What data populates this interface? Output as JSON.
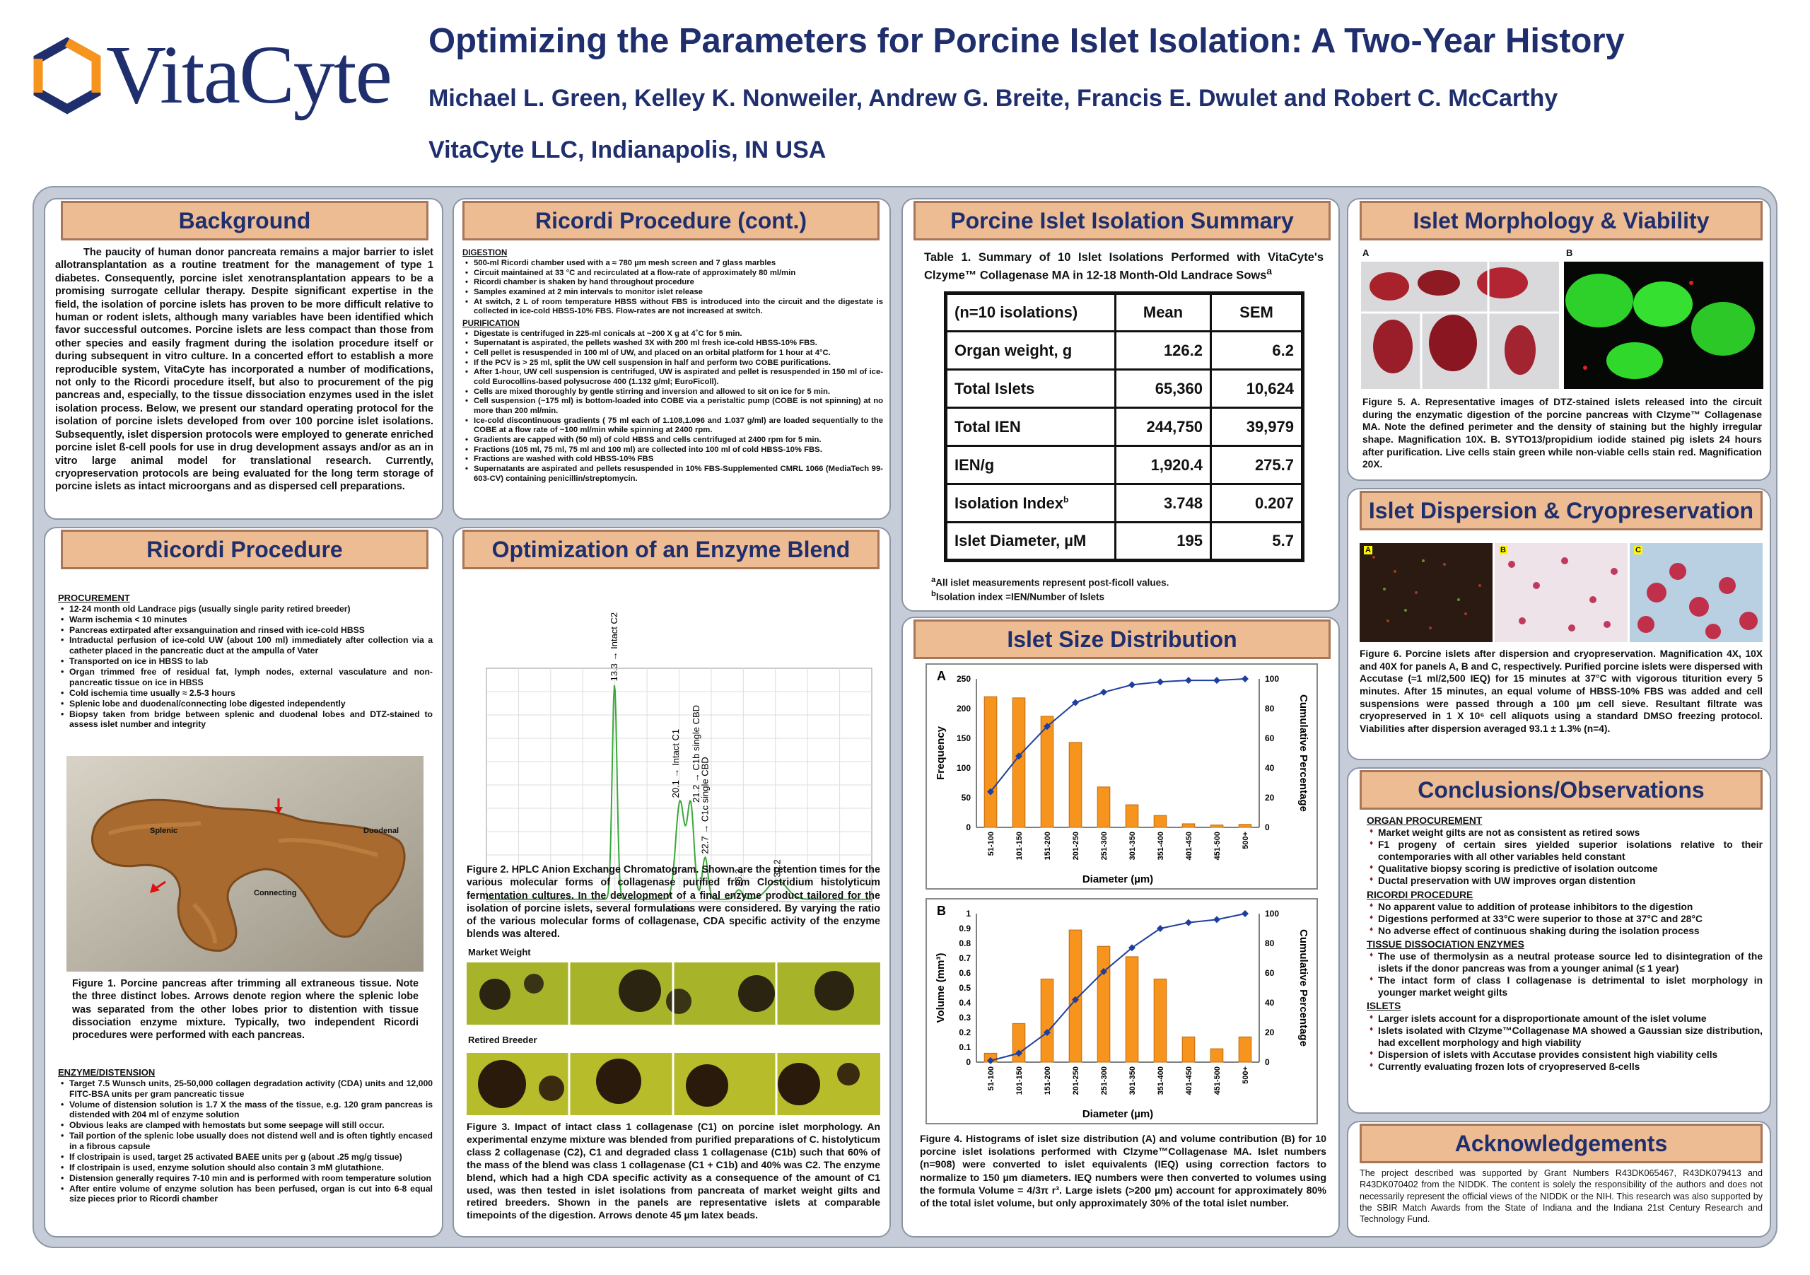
{
  "header": {
    "logo_text": "VitaCyte",
    "title": "Optimizing the Parameters for Porcine Islet Isolation: A Two-Year History",
    "authors": "Michael L. Green, Kelley K. Nonweiler, Andrew G. Breite, Francis E. Dwulet and Robert C. McCarthy",
    "affiliation": "VitaCyte LLC, Indianapolis, IN USA"
  },
  "colors": {
    "navy": "#1f2f6e",
    "header_fill": "#eebc92",
    "bar_orange": "#f7941d",
    "line_blue": "#1f3f9f"
  },
  "background": {
    "heading": "Background",
    "text": "The paucity of human donor pancreata remains a major barrier to islet allotransplantation as a routine treatment for the management of type 1 diabetes. Consequently, porcine islet xenotransplantation appears to be a promising surrogate cellular therapy. Despite significant expertise in the field, the isolation of porcine islets has proven to be more difficult relative to human or rodent islets, although many variables have been identified which favor successful outcomes. Porcine islets are less compact than those from other species and easily fragment during the isolation procedure itself or during subsequent in vitro culture. In a concerted effort to establish a more reproducible system, VitaCyte has incorporated a number of modifications, not only to the Ricordi procedure itself, but also to procurement of the pig pancreas and, especially, to the tissue dissociation enzymes used in the islet isolation process. Below, we present our standard operating protocol for the isolation of porcine islets developed from over 100 porcine islet isolations. Subsequently, islet dispersion protocols were employed to generate enriched porcine islet ß-cell pools for use in drug development assays and/or as an in vitro large animal model for translational research. Currently, cryopreservation protocols are being evaluated for the long term storage of porcine islets as intact microorgans and as dispersed cell preparations."
  },
  "ricordi": {
    "heading": "Ricordi Procedure",
    "procurement_title": "PROCUREMENT",
    "procurement": [
      "12-24 month old Landrace pigs (usually single parity retired breeder)",
      "Warm ischemia < 10 minutes",
      "Pancreas extirpated after exsanguination and rinsed with ice-cold HBSS",
      "Intraductal perfusion of ice-cold UW (about 100 ml) immediately after collection via a catheter placed in the pancreatic duct at the ampulla of Vater",
      "Transported on ice in HBSS to lab",
      "Organ trimmed free of residual fat, lymph nodes, external vasculature and non-pancreatic tissue on ice in HBSS",
      "Cold ischemia time usually ≈ 2.5-3 hours",
      "Splenic lobe and duodenal/connecting lobe digested independently",
      "Biopsy taken from bridge between splenic and duodenal lobes and DTZ-stained to assess islet number and integrity"
    ],
    "photo_labels": {
      "splenic": "Splenic",
      "duodenal": "Duodenal",
      "connecting": "Connecting"
    },
    "figure1": "Figure 1. Porcine pancreas after trimming all extraneous tissue. Note the three distinct lobes. Arrows denote region where the splenic lobe was separated from the other lobes prior to distention with tissue dissociation enzyme mixture. Typically, two independent Ricordi procedures were performed with each pancreas.",
    "enzyme_title": "ENZYME/DISTENSION",
    "enzyme": [
      "Target 7.5 Wunsch units, 25-50,000 collagen degradation activity (CDA) units and 12,000 FITC-BSA units per gram pancreatic tissue",
      "Volume of distension solution is 1.7 X the mass of the tissue, e.g. 120 gram pancreas is distended with 204 ml of enzyme solution",
      "Obvious leaks are clamped with hemostats but some seepage will still occur.",
      "Tail portion of the splenic lobe usually does not distend well and is often tightly encased in a fibrous capsule",
      "If clostripain is used, target 25 activated BAEE units per g (about .25 mg/g tissue)",
      "If clostripain is used, enzyme solution should also contain 3 mM glutathione.",
      "Distension generally requires 7-10 min and is performed with room temperature solution",
      "After entire volume of enzyme solution has been perfused, organ is cut into 6-8 equal size pieces prior to Ricordi chamber"
    ]
  },
  "ricordi_cont": {
    "heading": "Ricordi Procedure (cont.)",
    "digestion_title": "DIGESTION",
    "digestion": [
      "500-ml Ricordi chamber used with a ≈ 780 µm mesh screen and 7 glass marbles",
      "Circuit maintained at 33 °C and recirculated at a flow-rate of approximately 80 ml/min",
      "Ricordi chamber is shaken by hand throughout procedure",
      "Samples examined at 2 min intervals to monitor islet release",
      "At switch, 2 L of room temperature HBSS without FBS is introduced into the circuit and the digestate is collected in ice-cold HBSS-10% FBS. Flow-rates are not increased at switch."
    ],
    "purification_title": "PURIFICATION",
    "purification": [
      "Digestate is centrifuged in 225-ml conicals at ~200 X g at 4˚C for 5 min.",
      "Supernatant is aspirated, the pellets washed 3X with 200 ml fresh ice-cold HBSS-10% FBS.",
      "Cell pellet is resuspended in 100 ml of UW, and placed on an orbital platform for 1 hour at 4°C.",
      "If the PCV is > 25 ml, split the UW cell suspension in half and perform two COBE purifications.",
      "After 1-hour, UW cell suspension is centrifuged, UW is aspirated and pellet is resuspended in 150 ml of ice-cold Eurocollins-based polysucrose 400 (1.132 g/ml; EuroFicoll).",
      "Cells are mixed thoroughly by gentle stirring and inversion and allowed to sit on ice for 5 min.",
      "Cell suspension (~175 ml) is bottom-loaded into COBE via a peristaltic pump (COBE is not spinning) at no more than 200 ml/min.",
      "Ice-cold discontinuous gradients ( 75 ml each of 1.108,1.096 and 1.037 g/ml) are loaded sequentially to the COBE at a flow rate of ~100 ml/min while spinning at 2400 rpm.",
      "Gradients are capped with (50 ml) of cold HBSS and cells centrifuged at 2400 rpm for 5 min.",
      "Fractions (105 ml, 75 ml, 75 ml and 100 ml) are collected into 100 ml of cold HBSS-10% FBS.",
      "Fractions are washed with cold HBSS-10% FBS",
      "Supernatants are aspirated and pellets resuspended in 10% FBS-Supplemented CMRL 1066 (MediaTech 99-603-CV) containing penicillin/streptomycin."
    ]
  },
  "enzyme_blend": {
    "heading": "Optimization of an Enzyme Blend",
    "peaks": [
      {
        "rt": "13.3",
        "label": "Intact C2"
      },
      {
        "rt": "20.1",
        "label": "Intact C1"
      },
      {
        "rt": "21.2",
        "label": "C1b single CBD"
      },
      {
        "rt": "22.7",
        "label": "C1c single CBD"
      },
      {
        "rt": "26.2",
        "label": ""
      },
      {
        "rt": "30.2",
        "label": ""
      }
    ],
    "x_axis_label": "Minutes",
    "figure2": "Figure 2. HPLC Anion Exchange Chromatogram. Shown are the retention times for the various molecular forms of collagenase purified from Clostridium histolyticum fermentation cultures. In the development of a final enzyme product tailored for the isolation of porcine islets, several formulations were considered. By varying the ratio of the various molecular forms of collagenase, CDA specific activity of the enzyme blends was altered.",
    "market_label": "Market Weight",
    "retired_label": "Retired Breeder",
    "figure3": "Figure 3. Impact of intact class 1 collagenase (C1) on porcine islet morphology. An experimental enzyme mixture was blended from purified preparations of C. histolyticum class 2 collagenase (C2), C1 and degraded class 1 collagenase (C1b) such that 60% of the mass of the blend was class 1 collagenase (C1 + C1b) and 40% was C2. The enzyme blend, which had a high CDA specific activity as a consequence of the amount of C1 used, was then tested in islet isolations from pancreata of market weight gilts and retired breeders. Shown in the panels are representative islets at comparable timepoints of the digestion. Arrows denote 45 µm latex beads."
  },
  "summary": {
    "heading": "Porcine Islet Isolation Summary",
    "table_caption": "Table 1. Summary of 10 Islet Isolations Performed with VitaCyte's Clzyme™ Collagenase MA in 12-18 Month-Old Landrace Sows",
    "columns": [
      "(n=10 isolations)",
      "Mean",
      "SEM"
    ],
    "rows": [
      [
        "Organ weight, g",
        "126.2",
        "6.2"
      ],
      [
        "Total Islets",
        "65,360",
        "10,624"
      ],
      [
        "Total IEN",
        "244,750",
        "39,979"
      ],
      [
        "IEN/g",
        "1,920.4",
        "275.7"
      ],
      [
        "Isolation Index",
        "3.748",
        "0.207"
      ],
      [
        "Islet Diameter, µM",
        "195",
        "5.7"
      ]
    ],
    "footnote_a": "All islet measurements represent post-ficoll values.",
    "footnote_b": "Isolation index =IEN/Number of Islets"
  },
  "size_dist": {
    "heading": "Islet Size Distribution",
    "figure4": "Figure 4. Histograms of islet size distribution (A) and volume contribution (B) for 10 porcine islet isolations performed with Clzyme™Collagenase MA. Islet numbers (n=908) were converted to islet equivalents (IEQ) using correction factors to normalize to 150 µm diameters. IEQ numbers were then converted to volumes using the formula Volume = 4/3π r³. Large islets (>200 µm) account for approximately 80% of the total islet volume, but only approximately 30% of the total islet number."
  },
  "chart_data": [
    {
      "type": "bar",
      "panel": "A",
      "categories": [
        "51-100",
        "101-150",
        "151-200",
        "201-250",
        "251-300",
        "301-350",
        "351-400",
        "401-450",
        "451-500",
        "500+"
      ],
      "values": [
        220,
        218,
        187,
        143,
        68,
        38,
        20,
        6,
        4,
        5
      ],
      "cumulative": [
        24,
        48,
        68,
        84,
        91,
        96,
        98,
        99,
        99,
        100
      ],
      "xlabel": "Diameter (µm)",
      "ylabel": "Frequency",
      "y2label": "Cumulative Percentage",
      "ylim": [
        0,
        250
      ],
      "y2lim": [
        0,
        100
      ]
    },
    {
      "type": "bar",
      "panel": "B",
      "categories": [
        "51-100",
        "101-150",
        "151-200",
        "201-250",
        "251-300",
        "301-350",
        "351-400",
        "401-450",
        "451-500",
        "500+"
      ],
      "values": [
        0.06,
        0.26,
        0.56,
        0.89,
        0.78,
        0.71,
        0.56,
        0.17,
        0.09,
        0.17
      ],
      "cumulative": [
        1,
        6,
        20,
        42,
        61,
        77,
        90,
        94,
        96,
        100
      ],
      "xlabel": "Diameter (µm)",
      "ylabel": "Volume (mm³)",
      "y2label": "Cumulative Percentage",
      "ylim": [
        0,
        1
      ],
      "y2lim": [
        0,
        100
      ]
    }
  ],
  "morphology": {
    "heading": "Islet Morphology & Viability",
    "label_a": "A",
    "label_b": "B",
    "figure5": "Figure 5. A. Representative images of DTZ-stained islets released into the circuit during the enzymatic digestion of the porcine pancreas with Clzyme™ Collagenase MA. Note the defined perimeter and the density of staining but the highly irregular shape. Magnification 10X. B. SYTO13/propidium iodide stained pig islets 24 hours after purification. Live cells stain green while non-viable cells stain red. Magnification 20X."
  },
  "dispersion": {
    "heading": "Islet Dispersion & Cryopreservation",
    "labels": [
      "A",
      "B",
      "C"
    ],
    "figure6": "Figure 6. Porcine islets after dispersion and cryopreservation. Magnification 4X, 10X and 40X for panels A, B and C, respectively. Purified porcine islets were dispersed with Accutase (≈1 ml/2,500 IEQ) for 15 minutes at 37°C with vigorous titurition every 5 minutes. After 15 minutes, an equal volume of HBSS-10% FBS was added and cell suspensions were passed through a 100 µm cell sieve. Resultant filtrate was cryopreserved in 1 X 10⁶ cell aliquots using a standard DMSO freezing protocol. Viabilities after dispersion averaged 93.1 ± 1.3% (n=4)."
  },
  "conclusions": {
    "heading": "Conclusions/Observations",
    "sections": [
      {
        "title": "ORGAN PROCUREMENT",
        "items": [
          "Market weight gilts are not as consistent as retired sows",
          "F1 progeny of certain sires yielded superior isolations relative to their contemporaries with all other variables held constant",
          "Qualitative biopsy scoring is predictive of isolation outcome",
          "Ductal preservation with UW improves organ distention"
        ]
      },
      {
        "title": "RICORDI PROCEDURE",
        "items": [
          "No apparent value to addition of protease inhibitors to the digestion",
          "Digestions performed at 33°C were superior to those at 37°C and 28°C",
          "No adverse effect of continuous shaking during the isolation process"
        ]
      },
      {
        "title": "TISSUE DISSOCIATION ENZYMES",
        "items": [
          "The use of thermolysin as a neutral protease source led to disintegration of the islets if the donor pancreas was from a younger animal (≤ 1 year)",
          "The intact form of class I collagenase is detrimental to islet morphology in younger market weight gilts"
        ]
      },
      {
        "title": "ISLETS",
        "items": [
          "Larger islets account for a disproportionate amount of the islet volume",
          "Islets isolated with Clzyme™Collagenase MA showed a Gaussian size distribution, had excellent morphology and high viability",
          "Dispersion of islets with Accutase provides consistent high viability cells",
          "Currently evaluating frozen lots of cryopreserved ß-cells"
        ]
      }
    ]
  },
  "acknowledgements": {
    "heading": "Acknowledgements",
    "text": "The project described was supported by Grant Numbers R43DK065467, R43DK079413 and R43DK070402 from the NIDDK. The content is solely the responsibility of the authors and does not necessarily represent the official views of the NIDDK or the NIH. This research was also supported by the SBIR Match Awards from the State of Indiana and the Indiana 21st Century Research and Technology Fund."
  }
}
